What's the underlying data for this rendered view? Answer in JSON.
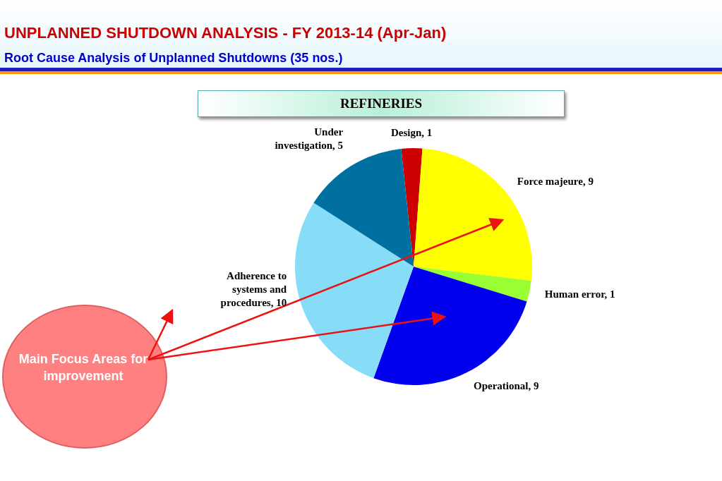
{
  "chart_data": {
    "type": "pie",
    "title": "UNPLANNED SHUTDOWN ANALYSIS - FY 2013-14 (Apr-Jan)",
    "subtitle": "Root Cause Analysis of Unplanned Shutdowns (35 nos.)",
    "annotations": [
      "REFINERIES",
      "Main Focus Areas for improvement"
    ],
    "categories": [
      "Design",
      "Force majeure",
      "Human error",
      "Operational",
      "Adherence to systems and procedures",
      "Under investigation"
    ],
    "values": [
      1,
      9,
      1,
      9,
      10,
      5
    ],
    "colors": [
      "#cc0000",
      "#ffff00",
      "#99ff33",
      "#0000ee",
      "#87dcf8",
      "#0070a0"
    ],
    "value_labels": [
      ", 1",
      ", 9",
      ", 1",
      ", 9",
      ", 10",
      ", 5"
    ],
    "legend": false
  }
}
